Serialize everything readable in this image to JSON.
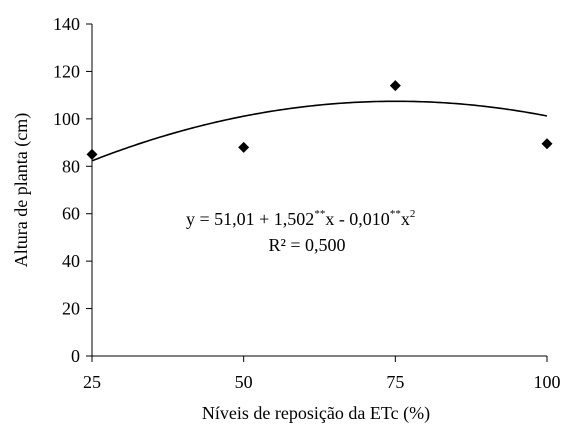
{
  "chart_data": {
    "type": "scatter",
    "xlabel": "Níveis de reposição da ETc (%)",
    "ylabel": "Altura de planta (cm)",
    "xlim": [
      25,
      100
    ],
    "ylim": [
      0,
      140
    ],
    "xticks": [
      "25",
      "50",
      "75",
      "100"
    ],
    "yticks": [
      "0",
      "20",
      "40",
      "60",
      "80",
      "100",
      "120",
      "140"
    ],
    "points": [
      {
        "x": 25,
        "y": 85
      },
      {
        "x": 50,
        "y": 88
      },
      {
        "x": 75,
        "y": 114
      },
      {
        "x": 100,
        "y": 89.5
      }
    ],
    "trendline": {
      "type": "quadratic",
      "a": 51.01,
      "b": 1.502,
      "c": -0.01
    },
    "equation": {
      "y_prefix": "y = 51,01 + 1,502",
      "sig1": "**",
      "x_mid": "x - 0,010",
      "sig2": "**",
      "x_end": "x",
      "exp": "2",
      "r2": "R² = 0,500"
    },
    "marker": "diamond",
    "grid": false,
    "color": "#000000"
  }
}
